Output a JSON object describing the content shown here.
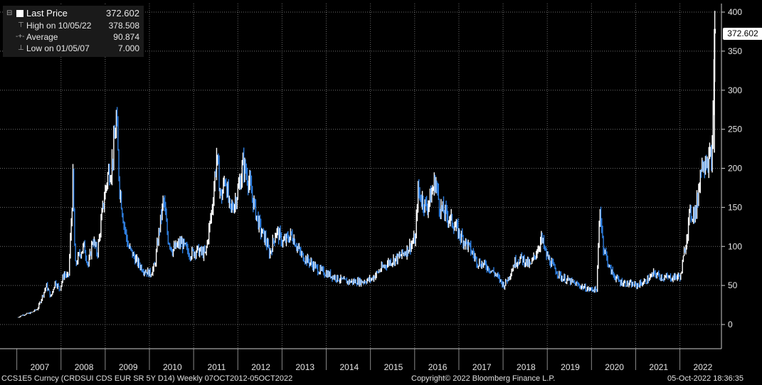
{
  "legend": {
    "last_price_label": "Last Price",
    "last_price_value": "372.602",
    "high_label": "High on 10/05/22",
    "high_value": "378.508",
    "average_label": "Average",
    "average_value": "90.874",
    "low_label": "Low on 01/05/07",
    "low_value": "7.000"
  },
  "last_price_tag": "372.602",
  "footer": {
    "ticker": "CCS1E5 Curncy (CRDSUI CDS EUR SR 5Y D14)  Weekly 07OCT2012-05OCT2022",
    "copyright": "Copyright© 2022 Bloomberg Finance L.P.",
    "timestamp": "05-Oct-2022 18:36:35"
  },
  "colors": {
    "background": "#000000",
    "grid": "#6b6b6b",
    "up_bar": "#ffffff",
    "down_bar": "#2f7fe0",
    "axis_text": "#e6e6e6"
  },
  "chart_data": {
    "type": "line",
    "title": "",
    "xlabel": "",
    "ylabel": "",
    "ylim": [
      -30,
      400
    ],
    "y_ticks": [
      0,
      50,
      100,
      150,
      200,
      250,
      300,
      350,
      400
    ],
    "x_ticks": [
      "2007",
      "2008",
      "2009",
      "2010",
      "2011",
      "2012",
      "2013",
      "2014",
      "2015",
      "2016",
      "2017",
      "2018",
      "2019",
      "2020",
      "2021",
      "2022"
    ],
    "grid": true,
    "legend_position": "top-left",
    "series": [
      {
        "name": "Last Price",
        "points": [
          [
            2007.0,
            9
          ],
          [
            2007.1,
            12
          ],
          [
            2007.3,
            15
          ],
          [
            2007.45,
            20
          ],
          [
            2007.55,
            35
          ],
          [
            2007.65,
            50
          ],
          [
            2007.75,
            35
          ],
          [
            2007.85,
            55
          ],
          [
            2007.95,
            45
          ],
          [
            2008.05,
            65
          ],
          [
            2008.15,
            60
          ],
          [
            2008.22,
            140
          ],
          [
            2008.25,
            185
          ],
          [
            2008.3,
            75
          ],
          [
            2008.4,
            90
          ],
          [
            2008.5,
            100
          ],
          [
            2008.6,
            75
          ],
          [
            2008.7,
            110
          ],
          [
            2008.8,
            90
          ],
          [
            2008.95,
            160
          ],
          [
            2009.05,
            195
          ],
          [
            2009.12,
            200
          ],
          [
            2009.2,
            240
          ],
          [
            2009.23,
            265
          ],
          [
            2009.3,
            180
          ],
          [
            2009.4,
            130
          ],
          [
            2009.5,
            100
          ],
          [
            2009.6,
            90
          ],
          [
            2009.7,
            80
          ],
          [
            2009.85,
            70
          ],
          [
            2010.0,
            65
          ],
          [
            2010.1,
            75
          ],
          [
            2010.2,
            120
          ],
          [
            2010.3,
            160
          ],
          [
            2010.4,
            110
          ],
          [
            2010.5,
            95
          ],
          [
            2010.7,
            105
          ],
          [
            2010.9,
            90
          ],
          [
            2011.05,
            95
          ],
          [
            2011.25,
            90
          ],
          [
            2011.4,
            150
          ],
          [
            2011.5,
            215
          ],
          [
            2011.6,
            160
          ],
          [
            2011.7,
            190
          ],
          [
            2011.8,
            145
          ],
          [
            2011.9,
            155
          ],
          [
            2012.0,
            175
          ],
          [
            2012.1,
            205
          ],
          [
            2012.2,
            190
          ],
          [
            2012.3,
            165
          ],
          [
            2012.4,
            140
          ],
          [
            2012.5,
            120
          ],
          [
            2012.6,
            110
          ],
          [
            2012.7,
            90
          ],
          [
            2012.85,
            120
          ],
          [
            2013.0,
            105
          ],
          [
            2013.2,
            115
          ],
          [
            2013.4,
            90
          ],
          [
            2013.6,
            80
          ],
          [
            2013.8,
            70
          ],
          [
            2014.0,
            65
          ],
          [
            2014.2,
            60
          ],
          [
            2014.4,
            55
          ],
          [
            2014.6,
            55
          ],
          [
            2014.8,
            55
          ],
          [
            2015.0,
            58
          ],
          [
            2015.2,
            70
          ],
          [
            2015.4,
            80
          ],
          [
            2015.6,
            85
          ],
          [
            2015.8,
            95
          ],
          [
            2016.0,
            110
          ],
          [
            2016.05,
            170
          ],
          [
            2016.15,
            160
          ],
          [
            2016.25,
            150
          ],
          [
            2016.35,
            165
          ],
          [
            2016.45,
            185
          ],
          [
            2016.55,
            150
          ],
          [
            2016.7,
            140
          ],
          [
            2016.85,
            130
          ],
          [
            2017.0,
            115
          ],
          [
            2017.2,
            100
          ],
          [
            2017.4,
            80
          ],
          [
            2017.6,
            75
          ],
          [
            2017.8,
            65
          ],
          [
            2018.0,
            50
          ],
          [
            2018.1,
            60
          ],
          [
            2018.25,
            80
          ],
          [
            2018.4,
            85
          ],
          [
            2018.6,
            75
          ],
          [
            2018.75,
            95
          ],
          [
            2018.85,
            110
          ],
          [
            2018.95,
            90
          ],
          [
            2019.1,
            75
          ],
          [
            2019.3,
            60
          ],
          [
            2019.5,
            55
          ],
          [
            2019.7,
            50
          ],
          [
            2019.9,
            45
          ],
          [
            2020.1,
            45
          ],
          [
            2020.17,
            150
          ],
          [
            2020.25,
            100
          ],
          [
            2020.4,
            70
          ],
          [
            2020.6,
            55
          ],
          [
            2020.8,
            52
          ],
          [
            2021.0,
            50
          ],
          [
            2021.2,
            55
          ],
          [
            2021.4,
            65
          ],
          [
            2021.6,
            60
          ],
          [
            2021.8,
            60
          ],
          [
            2022.0,
            62
          ],
          [
            2022.1,
            100
          ],
          [
            2022.2,
            140
          ],
          [
            2022.35,
            145
          ],
          [
            2022.45,
            200
          ],
          [
            2022.55,
            215
          ],
          [
            2022.65,
            210
          ],
          [
            2022.72,
            220
          ],
          [
            2022.76,
            378.5
          ],
          [
            2022.78,
            372.6
          ]
        ]
      }
    ]
  }
}
